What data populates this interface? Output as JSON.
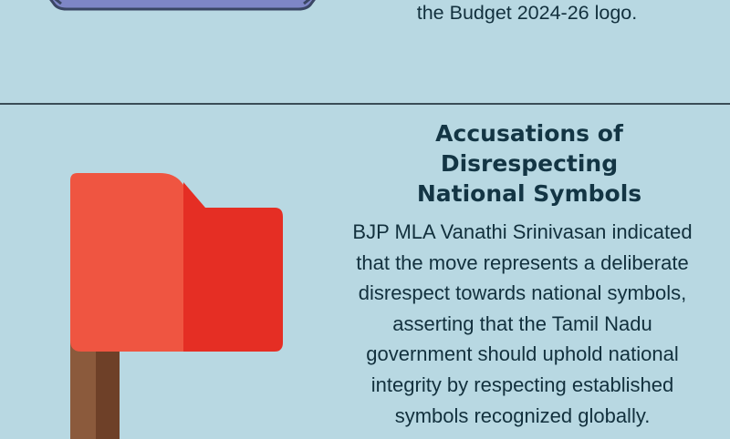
{
  "top_section": {
    "icon": "envelope-icon",
    "caption_line": "the Budget 2024-26 logo."
  },
  "main_section": {
    "icon": "red-flag-icon",
    "title_lines": [
      "Accusations of",
      "Disrespecting",
      "National Symbols"
    ],
    "body_lines": [
      "BJP MLA Vanathi Srinivasan indicated",
      "that the move represents a deliberate",
      "disrespect towards national symbols,",
      "asserting that the Tamil Nadu",
      "government should uphold national",
      "integrity by respecting established",
      "symbols recognized globally."
    ]
  },
  "colors": {
    "background": "#b8d8e2",
    "text": "#12303d",
    "flag_light": "#ef5541",
    "flag_dark": "#e52e24",
    "pole_light": "#8b5a3c",
    "pole_dark": "#6e4028",
    "envelope": "#7e86c6",
    "envelope_border": "#3a4664"
  }
}
